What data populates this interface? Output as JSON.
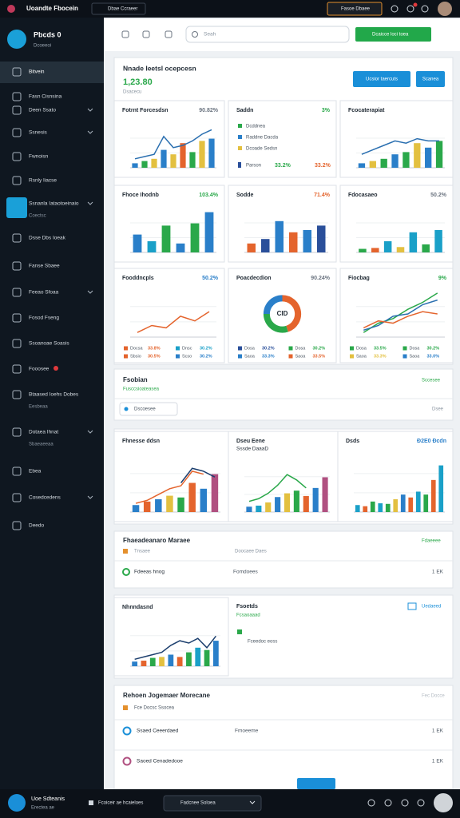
{
  "topbar": {
    "title": "Uoandte Fbocein",
    "button": "Dbae Ccraeer",
    "right_button": "Fasoe Dbaee"
  },
  "sidebar": {
    "brand": "Pbcds 0",
    "brand_sub": "Dcoeeoi",
    "items": [
      {
        "label": "Bitvein"
      },
      {
        "label": "Fasn Cisnsina"
      },
      {
        "label": "Deen Ssato"
      },
      {
        "label": "Ssnesis"
      },
      {
        "label": "Fwnoisn"
      },
      {
        "label": "Rsnly Iiacse"
      },
      {
        "label": "Ssnanla Iataotoeinaio",
        "sub": "Coectsc"
      },
      {
        "label": "Dsse Dbs Ioeak"
      },
      {
        "label": "Fanse Sbaee"
      },
      {
        "label": "Feeao Sfoaa"
      },
      {
        "label": "Fosod Fseng"
      },
      {
        "label": "Ssoanoae Soasis"
      },
      {
        "label": "Fooosee"
      },
      {
        "label": "Btaased Ioehs Dobes",
        "sub": "Eesbeaa"
      },
      {
        "label": "Dotaea Ihnat",
        "sub": "Sbaeaeeaa"
      },
      {
        "label": "Ebea"
      },
      {
        "label": "Cosedcedens"
      },
      {
        "label": "Deedo"
      }
    ]
  },
  "header": {
    "search": "Seah",
    "new_button": "Dcaicce loci toea"
  },
  "overview": {
    "title": "Nnade Ieetsl ocepcesn",
    "value": "1,23.80",
    "sub": "Dsacecu",
    "buttons": [
      "Ucsior taercuts",
      "Scanea"
    ],
    "charts": [
      {
        "type": "bar",
        "title": "Fotrnt Forcesdsn",
        "badge": "90.82%",
        "badge_color": "#6b7480",
        "ylim": [
          0,
          100
        ],
        "series": [
          {
            "kind": "bar",
            "colors": [
              "#2a7fc9",
              "#2aa84a",
              "#e3c040",
              "#2a7fc9",
              "#e3c040",
              "#e4642d",
              "#2aa84a",
              "#e3c040",
              "#2a7fc9"
            ],
            "values": [
              10,
              15,
              20,
              40,
              30,
              55,
              35,
              60,
              65
            ]
          },
          {
            "kind": "line",
            "color": "#2a6fb0",
            "values": [
              20,
              25,
              30,
              70,
              45,
              50,
              60,
              75,
              85
            ]
          }
        ]
      },
      {
        "type": "legend",
        "title": "Saddn",
        "badge": "3%",
        "badge_color": "#2aa84a",
        "items": [
          {
            "label": "Dcddnea",
            "color": "#2aa84a"
          },
          {
            "label": "Raddne Dacda",
            "color": "#2a7fc9"
          },
          {
            "label": "Dcoade Sedsn",
            "color": "#e3c040"
          }
        ],
        "footer": {
          "label": "Parson",
          "values": [
            "33.2%",
            "33.2%"
          ],
          "color": "#2a4f9a"
        }
      },
      {
        "type": "bar",
        "title": "Fcocaterapiat",
        "ylim": [
          0,
          100
        ],
        "series": [
          {
            "kind": "bar",
            "colors": [
              "#2a7fc9",
              "#e3c040",
              "#2aa84a",
              "#2a7fc9",
              "#2aa84a",
              "#e3c040",
              "#2a7fc9",
              "#2aa84a"
            ],
            "values": [
              10,
              15,
              20,
              30,
              35,
              55,
              45,
              60
            ]
          },
          {
            "kind": "line",
            "color": "#2a6fb0",
            "values": [
              30,
              40,
              50,
              60,
              55,
              65,
              60,
              60
            ]
          }
        ]
      },
      {
        "type": "bar",
        "title": "Fhoce Ihodnb",
        "badge": "103.4%",
        "badge_color": "#2aa84a",
        "ylim": [
          0,
          100
        ],
        "series": [
          {
            "kind": "bar",
            "colors": [
              "#2a7fc9",
              "#1aa0c8",
              "#2aa84a",
              "#2a7fc9",
              "#2aa84a",
              "#2a7fc9"
            ],
            "values": [
              40,
              25,
              60,
              20,
              65,
              90
            ]
          }
        ]
      },
      {
        "type": "bar",
        "title": "Sodde",
        "badge": "71.4%",
        "badge_color": "#e4642d",
        "ylim": [
          0,
          100
        ],
        "series": [
          {
            "kind": "bar",
            "colors": [
              "#e4642d",
              "#2a4f9a",
              "#2a7fc9",
              "#e4642d",
              "#2a7fc9",
              "#2a4f9a"
            ],
            "values": [
              20,
              30,
              70,
              45,
              50,
              60
            ]
          }
        ]
      },
      {
        "type": "bar",
        "title": "Fdocasaeo",
        "badge": "50.2%",
        "badge_color": "#6b7480",
        "ylim": [
          0,
          100
        ],
        "series": [
          {
            "kind": "bar",
            "colors": [
              "#2aa84a",
              "#e4642d",
              "#1aa0c8",
              "#e3c040",
              "#1aa0c8",
              "#2aa84a",
              "#1aa0c8"
            ],
            "values": [
              8,
              10,
              25,
              12,
              45,
              18,
              50
            ]
          }
        ]
      },
      {
        "type": "line",
        "title": "Fooddncpls",
        "badge": "50.2%",
        "badge_color": "#2a7fc9",
        "ylim": [
          0,
          100
        ],
        "series": [
          {
            "kind": "line",
            "color": "#e4642d",
            "values": [
              10,
              25,
              20,
              45,
              35,
              55
            ]
          }
        ],
        "legend": [
          {
            "label": "Docsa",
            "value": "33.8%",
            "color": "#e4642d"
          },
          {
            "label": "Dnsc",
            "value": "30.2%",
            "color": "#1aa0c8"
          },
          {
            "label": "Sbsio",
            "value": "30.5%",
            "color": "#e4642d"
          },
          {
            "label": "Scso",
            "value": "30.2%",
            "color": "#2a7fc9"
          }
        ]
      },
      {
        "type": "donut",
        "title": "Poacdecdion",
        "badge": "90.24%",
        "badge_color": "#6b7480",
        "center": "CID",
        "values": [
          45,
          30,
          25
        ],
        "colors": [
          "#e4642d",
          "#2aa84a",
          "#2a7fc9"
        ],
        "legend": [
          {
            "label": "Dosa",
            "value": "30.2%",
            "color": "#2a4f9a"
          },
          {
            "label": "Dosa",
            "value": "30.2%",
            "color": "#2aa84a"
          },
          {
            "label": "Saoa",
            "value": "33.3%",
            "color": "#2a7fc9"
          },
          {
            "label": "Saoa",
            "value": "33.5%",
            "color": "#e4642d"
          }
        ]
      },
      {
        "type": "line",
        "title": "Fiocbag",
        "badge": "9%",
        "badge_color": "#2aa84a",
        "ylim": [
          0,
          100
        ],
        "series": [
          {
            "kind": "line",
            "color": "#2aa84a",
            "values": [
              10,
              30,
              40,
              60,
              75,
              95
            ]
          },
          {
            "kind": "line",
            "color": "#2a6fb0",
            "values": [
              15,
              25,
              45,
              50,
              70,
              80
            ]
          },
          {
            "kind": "line",
            "color": "#e4642d",
            "values": [
              20,
              35,
              30,
              45,
              55,
              50
            ]
          }
        ],
        "legend": [
          {
            "label": "Dosa",
            "value": "33.5%",
            "color": "#2aa84a"
          },
          {
            "label": "Dosa",
            "value": "30.2%",
            "color": "#2aa84a"
          },
          {
            "label": "Saoa",
            "value": "33.3%",
            "color": "#e3c040"
          },
          {
            "label": "Saoa",
            "value": "33.0%",
            "color": "#2a7fc9"
          }
        ]
      }
    ]
  },
  "filter_card": {
    "title": "Fsobian",
    "sub": "Fusccsioateasea",
    "dropdown": "Dscoesee",
    "action": "Sccesee",
    "right": "Dsee"
  },
  "trend_charts": [
    {
      "type": "bar",
      "title": "Fhnesse ddsn",
      "ylim": [
        0,
        100
      ],
      "series": [
        {
          "kind": "bar",
          "colors": [
            "#2a7fc9",
            "#e4642d",
            "#2a7fc9",
            "#e3c040",
            "#2aa84a",
            "#e4642d",
            "#2a7fc9",
            "#b05080"
          ],
          "values": [
            12,
            18,
            22,
            28,
            25,
            50,
            40,
            65
          ]
        },
        {
          "kind": "line",
          "color": "#e4642d",
          "values": [
            15,
            20,
            30,
            40,
            45,
            70,
            65
          ]
        },
        {
          "kind": "line",
          "color": "#1c3f6e",
          "values": [
            null,
            null,
            null,
            null,
            50,
            75,
            70,
            60
          ]
        }
      ]
    },
    {
      "type": "bar",
      "title": "Dseu Eene",
      "subtitle": "Sssde DaaaD",
      "ylim": [
        0,
        100
      ],
      "series": [
        {
          "kind": "bar",
          "colors": [
            "#2a7fc9",
            "#1aa0c8",
            "#e3c040",
            "#2a7fc9",
            "#e3c040",
            "#2aa84a",
            "#e4642d",
            "#2a7fc9",
            "#b05080"
          ],
          "values": [
            10,
            12,
            18,
            28,
            35,
            40,
            30,
            45,
            65
          ]
        },
        {
          "kind": "line",
          "color": "#2aa84a",
          "values": [
            20,
            25,
            35,
            50,
            70,
            60,
            45
          ]
        }
      ]
    },
    {
      "type": "bar",
      "title": "Dsds",
      "badge": "Ð2E0 Ðcdn",
      "badge_color": "#2a7fc9",
      "ylim": [
        0,
        100
      ],
      "series": [
        {
          "kind": "bar",
          "colors": [
            "#1aa0c8",
            "#e4642d",
            "#2aa84a",
            "#1aa0c8",
            "#2aa84a",
            "#e3c040",
            "#2a7fc9",
            "#e4642d",
            "#1aa0c8",
            "#2aa84a",
            "#e4642d",
            "#1aa0c8"
          ],
          "values": [
            12,
            10,
            18,
            15,
            14,
            22,
            30,
            25,
            35,
            30,
            55,
            80
          ]
        }
      ]
    }
  ],
  "list_card": {
    "title": "Fhaeadeanaro Maraee",
    "sub": "Tnsaee",
    "sub2": "Doocaee Daes",
    "action": "Fdaeeee",
    "row": {
      "label": "Fdeeas hnog",
      "meta": "Fomdoees",
      "right": "1 EK"
    }
  },
  "insight_card": {
    "chart": {
      "type": "bar",
      "title": "Nhnndasnd",
      "ylim": [
        0,
        100
      ],
      "series": [
        {
          "kind": "bar",
          "colors": [
            "#2a7fc9",
            "#e4642d",
            "#2aa84a",
            "#e3c040",
            "#2a7fc9",
            "#e4642d",
            "#2aa84a",
            "#1aa0c8",
            "#2aa84a",
            "#2a7fc9"
          ],
          "values": [
            10,
            12,
            18,
            20,
            25,
            20,
            30,
            40,
            35,
            55
          ]
        },
        {
          "kind": "line",
          "color": "#1c3f6e",
          "values": [
            15,
            20,
            25,
            30,
            45,
            55,
            50,
            60,
            40,
            65
          ]
        }
      ]
    },
    "title": "Fsoetds",
    "sub": "Fcsaoaaad",
    "item": "Fceedoc eoss",
    "button": "Uedaeed"
  },
  "report_card": {
    "title": "Rehoen Jogemaer Morecane",
    "sub": "Fce Docsc Ssocea",
    "action": "Fec Docce",
    "rows": [
      {
        "label": "Ssaed Ceeerdaed",
        "meta": "Fmoeeme",
        "right": "1 EK"
      },
      {
        "label": "Saoed Cenadedooe",
        "meta": "",
        "right": "1 EK"
      }
    ]
  },
  "bottombar": {
    "user": "Uoe Sdteanis",
    "user_sub": "Erectea ae",
    "message": "Fcoiceir ae hcaieloes",
    "dropdown": "Fadcnee Soloea"
  }
}
